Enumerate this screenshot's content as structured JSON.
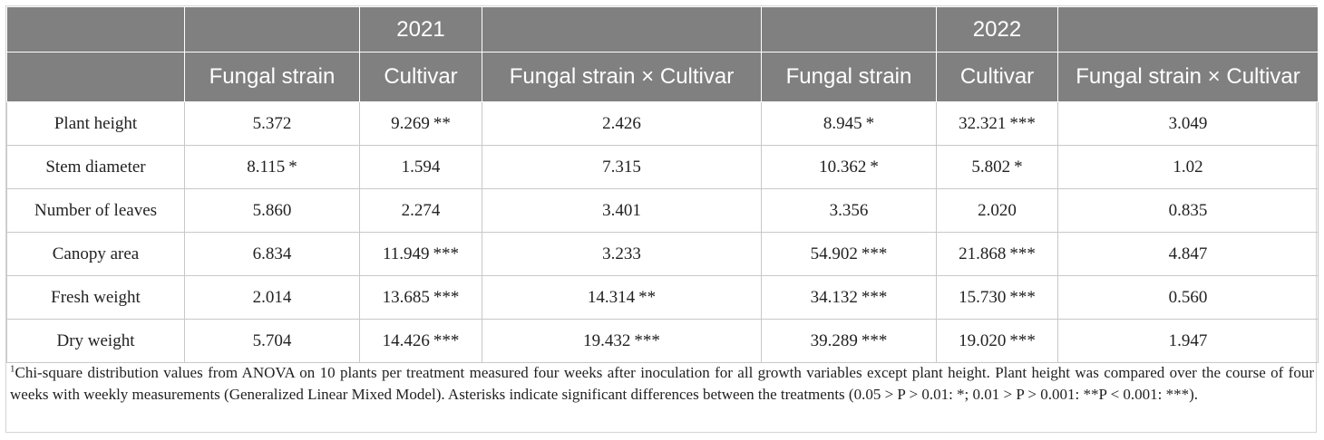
{
  "years": [
    "2021",
    "2022"
  ],
  "columns": [
    "Fungal strain",
    "Cultivar",
    "Fungal strain × Cultivar",
    "Fungal strain",
    "Cultivar",
    "Fungal strain × Cultivar"
  ],
  "rows": [
    {
      "label": "Plant height",
      "values": [
        "5.372",
        "9.269",
        "2.426",
        "8.945",
        "32.321",
        "3.049"
      ],
      "sig": [
        "",
        "**",
        "",
        "*",
        "***",
        ""
      ]
    },
    {
      "label": "Stem diameter",
      "values": [
        "8.115",
        "1.594",
        "7.315",
        "10.362",
        "5.802",
        "1.02"
      ],
      "sig": [
        "*",
        "",
        "",
        "*",
        "*",
        ""
      ]
    },
    {
      "label": "Number of leaves",
      "values": [
        "5.860",
        "2.274",
        "3.401",
        "3.356",
        "2.020",
        "0.835"
      ],
      "sig": [
        "",
        "",
        "",
        "",
        "",
        ""
      ]
    },
    {
      "label": "Canopy area",
      "values": [
        "6.834",
        "11.949",
        "3.233",
        "54.902",
        "21.868",
        "4.847"
      ],
      "sig": [
        "",
        "***",
        "",
        "***",
        "***",
        ""
      ]
    },
    {
      "label": "Fresh weight",
      "values": [
        "2.014",
        "13.685",
        "14.314",
        "34.132",
        "15.730",
        "0.560"
      ],
      "sig": [
        "",
        "***",
        "**",
        "***",
        "***",
        ""
      ]
    },
    {
      "label": "Dry weight",
      "values": [
        "5.704",
        "14.426",
        "19.432",
        "39.289",
        "19.020",
        "1.947"
      ],
      "sig": [
        "",
        "***",
        "***",
        "***",
        "***",
        ""
      ]
    }
  ],
  "footnote": {
    "marker": "1",
    "text": "Chi-square distribution values from ANOVA on 10 plants per treatment measured four weeks after inoculation for all growth variables except plant height. Plant height was compared over the course of four weeks with weekly measurements (Generalized Linear Mixed Model). Asterisks indicate significant differences between the treatments (0.05 > P > 0.01: *; 0.01 > P > 0.001: **P < 0.001: ***)."
  }
}
